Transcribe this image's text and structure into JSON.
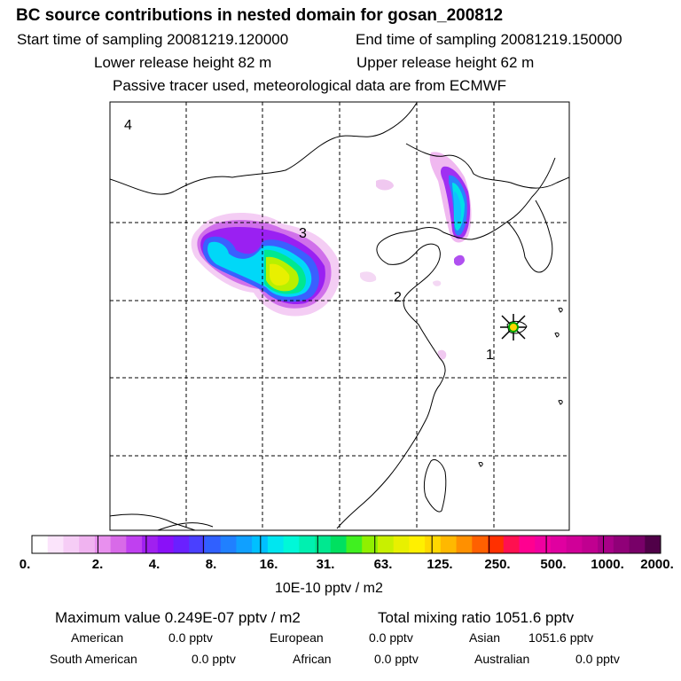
{
  "header": {
    "title": "BC  source contributions in nested domain for gosan_200812",
    "start_label": "Start time of sampling 20081219.120000",
    "end_label": "End time of sampling 20081219.150000",
    "lower_label": "Lower release height   82 m",
    "upper_label": "Upper release height   62 m",
    "tracer_note": "Passive tracer used, meteorological data are from ECMWF"
  },
  "map": {
    "region_labels": [
      "1",
      "2",
      "3",
      "4"
    ],
    "receptor": "gosan"
  },
  "colorbar": {
    "ticks": [
      "0.",
      "2.",
      "4.",
      "8.",
      "16.",
      "31.",
      "63.",
      "125.",
      "250.",
      "500.",
      "1000.",
      "2000."
    ],
    "unit": "10E-10 pptv / m2",
    "colors": [
      "#ffffff",
      "#fbe4fb",
      "#f6cdf6",
      "#f0b3f0",
      "#e890ee",
      "#d86ae8",
      "#c040f0",
      "#a020f0",
      "#8a10f8",
      "#6a20ff",
      "#4a40ff",
      "#3060ff",
      "#2080ff",
      "#10a0ff",
      "#00c0ff",
      "#00e6f0",
      "#00f8d8",
      "#00f0b0",
      "#00e890",
      "#00e060",
      "#40f020",
      "#90f000",
      "#c8f000",
      "#e8f000",
      "#fff000",
      "#ffd800",
      "#ffb800",
      "#ff9000",
      "#ff6000",
      "#ff3000",
      "#ff1050",
      "#ff0090",
      "#f000a0",
      "#e000a0",
      "#d00098",
      "#c00090",
      "#a80088",
      "#900078",
      "#780068",
      "#500048"
    ]
  },
  "footer": {
    "max_label": "Maximum value  0.249E-07 pptv / m2",
    "total_label": "Total mixing ratio     1051.6 pptv",
    "american_label": "American",
    "american_value": "0.0 pptv",
    "european_label": "European",
    "european_value": "0.0 pptv",
    "asian_label": "Asian",
    "asian_value": "1051.6 pptv",
    "south_american_label": "South American",
    "south_american_value": "0.0 pptv",
    "african_label": "African",
    "african_value": "0.0 pptv",
    "australian_label": "Australian",
    "australian_value": "0.0 pptv"
  }
}
